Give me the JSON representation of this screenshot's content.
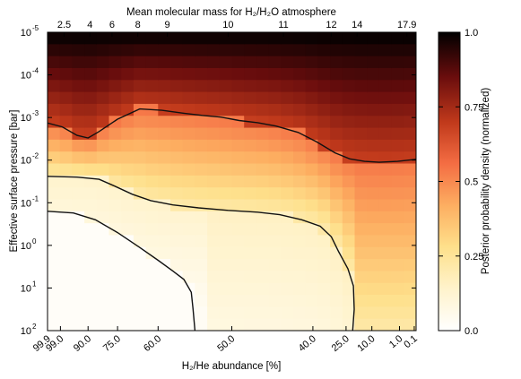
{
  "chart_data": {
    "type": "heatmap",
    "top_axis_title": "Mean molecular mass for H₂/H₂O atmosphere",
    "xlabel": "H₂/He abundance [%]",
    "ylabel": "Effective surface pressure [bar]",
    "colorbar_label": "Posterior probability density (normalized)",
    "colorbar_ticks": [
      "0.0",
      "0.25",
      "0.5",
      "0.75",
      "1.0"
    ],
    "colormap": [
      "#ffffff",
      "#fff3cc",
      "#fee08b",
      "#fdae61",
      "#f46d43",
      "#c0391b",
      "#6a0d0d",
      "#000000"
    ],
    "x_tick_labels": [
      "99.9",
      "99.0",
      "90.0",
      "75.0",
      "60.0",
      "50.0",
      "40.0",
      "25.0",
      "10.0",
      "1.0",
      "0.1"
    ],
    "top_tick_labels": [
      "2.5",
      "4",
      "6",
      "8",
      "9",
      "10",
      "11",
      "12",
      "14",
      "17.9"
    ],
    "y_tick_labels": [
      {
        "base": "10",
        "exp": "-5"
      },
      {
        "base": "10",
        "exp": "-4"
      },
      {
        "base": "10",
        "exp": "-3"
      },
      {
        "base": "10",
        "exp": "-2"
      },
      {
        "base": "10",
        "exp": "-1"
      },
      {
        "base": "10",
        "exp": "0"
      },
      {
        "base": "10",
        "exp": "1"
      },
      {
        "base": "10",
        "exp": "2"
      }
    ],
    "ylim_log10_bar": [
      -5,
      2
    ],
    "xrange_index": [
      0,
      1
    ],
    "grid": false,
    "contours": [
      {
        "level": "outer",
        "points": [
          [
            0.0,
            -2.87
          ],
          [
            0.04,
            -2.78
          ],
          [
            0.08,
            -2.58
          ],
          [
            0.11,
            -2.52
          ],
          [
            0.14,
            -2.67
          ],
          [
            0.19,
            -2.96
          ],
          [
            0.25,
            -3.2
          ],
          [
            0.31,
            -3.17
          ],
          [
            0.37,
            -3.1
          ],
          [
            0.42,
            -3.05
          ],
          [
            0.47,
            -3.01
          ],
          [
            0.52,
            -2.93
          ],
          [
            0.57,
            -2.88
          ],
          [
            0.62,
            -2.8
          ],
          [
            0.68,
            -2.65
          ],
          [
            0.73,
            -2.43
          ],
          [
            0.78,
            -2.17
          ],
          [
            0.82,
            -2.03
          ],
          [
            0.86,
            -1.97
          ],
          [
            0.9,
            -1.95
          ],
          [
            0.95,
            -1.97
          ],
          [
            1.0,
            -2.02
          ]
        ]
      },
      {
        "level": "middle",
        "points": [
          [
            0.0,
            -1.62
          ],
          [
            0.08,
            -1.6
          ],
          [
            0.14,
            -1.55
          ],
          [
            0.18,
            -1.4
          ],
          [
            0.23,
            -1.2
          ],
          [
            0.28,
            -1.05
          ],
          [
            0.34,
            -0.95
          ],
          [
            0.41,
            -0.88
          ],
          [
            0.49,
            -0.82
          ],
          [
            0.57,
            -0.78
          ],
          [
            0.63,
            -0.72
          ],
          [
            0.69,
            -0.6
          ],
          [
            0.74,
            -0.45
          ],
          [
            0.77,
            -0.2
          ],
          [
            0.79,
            0.15
          ],
          [
            0.815,
            0.55
          ],
          [
            0.83,
            0.95
          ],
          [
            0.832,
            1.5
          ],
          [
            0.828,
            2.0
          ]
        ]
      },
      {
        "level": "inner",
        "points": [
          [
            0.0,
            -0.8
          ],
          [
            0.07,
            -0.76
          ],
          [
            0.13,
            -0.6
          ],
          [
            0.19,
            -0.3
          ],
          [
            0.25,
            0.05
          ],
          [
            0.3,
            0.35
          ],
          [
            0.34,
            0.6
          ],
          [
            0.37,
            0.8
          ],
          [
            0.39,
            1.1
          ],
          [
            0.395,
            1.5
          ],
          [
            0.4,
            2.0
          ]
        ]
      }
    ]
  }
}
